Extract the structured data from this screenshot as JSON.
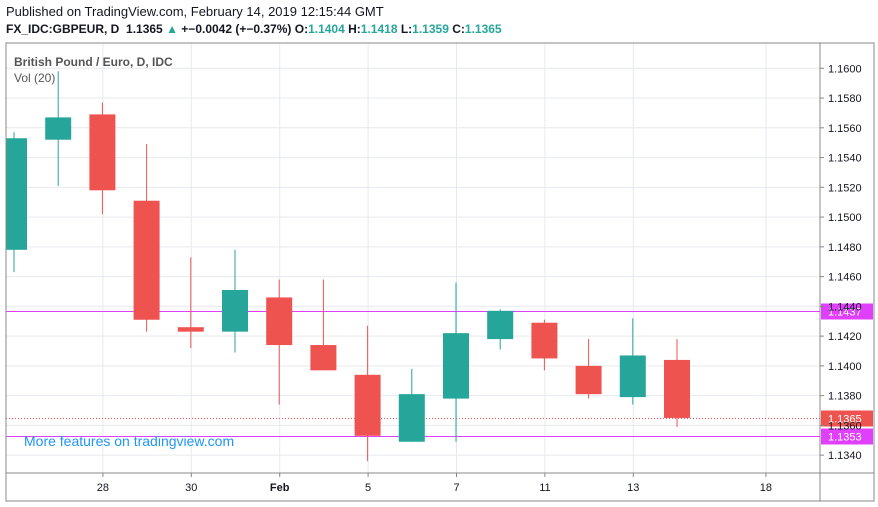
{
  "header": {
    "published": "Published on TradingView.com, February 14, 2019 12:15:44 GMT",
    "symbol": "FX_IDC:GBPEUR, D",
    "last": "1.1365",
    "arrow": "▲",
    "change": "+−0.0042 (+−0.37%)",
    "o_label": "O:",
    "o_value": "1.1404",
    "h_label": "H:",
    "h_value": "1.1418",
    "l_label": "L:",
    "l_value": "1.1359",
    "c_label": "C:",
    "c_value": "1.1365"
  },
  "chart_data": {
    "type": "candlestick",
    "title": "British Pound / Euro, D, IDC",
    "indicator": "Vol (20)",
    "watermark": "More features on tradingview.com",
    "ylim": [
      1.1328,
      1.1617
    ],
    "y_ticks": [
      "1.1340",
      "1.1360",
      "1.1380",
      "1.1400",
      "1.1420",
      "1.1440",
      "1.1460",
      "1.1480",
      "1.1500",
      "1.1520",
      "1.1540",
      "1.1560",
      "1.1580",
      "1.1600"
    ],
    "x_ticks": [
      {
        "label": "28",
        "i": 2
      },
      {
        "label": "30",
        "i": 4
      },
      {
        "label": "Feb",
        "i": 6
      },
      {
        "label": "5",
        "i": 8
      },
      {
        "label": "7",
        "i": 10
      },
      {
        "label": "11",
        "i": 12
      },
      {
        "label": "13",
        "i": 14
      },
      {
        "label": "18",
        "i": 17
      }
    ],
    "candles": [
      {
        "o": 1.1478,
        "h": 1.1557,
        "l": 1.1463,
        "c": 1.1553
      },
      {
        "o": 1.1552,
        "h": 1.1598,
        "l": 1.1521,
        "c": 1.1567
      },
      {
        "o": 1.1569,
        "h": 1.1577,
        "l": 1.1502,
        "c": 1.1518
      },
      {
        "o": 1.1511,
        "h": 1.1549,
        "l": 1.1423,
        "c": 1.1431
      },
      {
        "o": 1.1426,
        "h": 1.1473,
        "l": 1.1412,
        "c": 1.1423
      },
      {
        "o": 1.1423,
        "h": 1.1478,
        "l": 1.1409,
        "c": 1.1451
      },
      {
        "o": 1.1446,
        "h": 1.1458,
        "l": 1.1374,
        "c": 1.1414
      },
      {
        "o": 1.1414,
        "h": 1.1458,
        "l": 1.1397,
        "c": 1.1397
      },
      {
        "o": 1.1394,
        "h": 1.1427,
        "l": 1.1336,
        "c": 1.1353
      },
      {
        "o": 1.1349,
        "h": 1.1398,
        "l": 1.1349,
        "c": 1.1381
      },
      {
        "o": 1.1378,
        "h": 1.1456,
        "l": 1.1349,
        "c": 1.1422
      },
      {
        "o": 1.1418,
        "h": 1.1438,
        "l": 1.1411,
        "c": 1.1437
      },
      {
        "o": 1.1429,
        "h": 1.1431,
        "l": 1.1397,
        "c": 1.1405
      },
      {
        "o": 1.14,
        "h": 1.1418,
        "l": 1.1378,
        "c": 1.1381
      },
      {
        "o": 1.1379,
        "h": 1.1432,
        "l": 1.1374,
        "c": 1.1407
      },
      {
        "o": 1.1404,
        "h": 1.1418,
        "l": 1.1359,
        "c": 1.1365
      }
    ],
    "hlines": [
      {
        "value": 1.1437,
        "label": "1.1437",
        "color": "#e040fb"
      },
      {
        "value": 1.1353,
        "label": "1.1353",
        "color": "#e040fb"
      }
    ],
    "last_price": {
      "value": 1.1365,
      "label": "1.1365",
      "color": "#ef5350"
    },
    "colors": {
      "up": "#26a69a",
      "down": "#ef5350",
      "grid": "#e6e9ee",
      "axis": "#888888"
    }
  }
}
